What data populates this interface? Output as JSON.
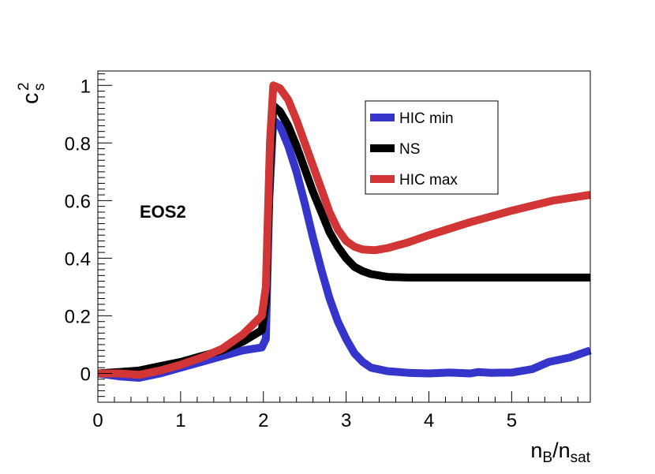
{
  "chart_data": {
    "type": "line",
    "xlabel_main": "n",
    "xlabel_sub1": "B",
    "xlabel_sep": "/n",
    "xlabel_sub2": "sat",
    "ylabel_main": "c",
    "ylabel_sup": "2",
    "ylabel_sub": "s",
    "annotation": "EOS2",
    "xlim": [
      0,
      5.95
    ],
    "ylim": [
      -0.1,
      1.05
    ],
    "x_ticks": [
      0,
      1,
      2,
      3,
      4,
      5
    ],
    "y_ticks": [
      0,
      0.2,
      0.4,
      0.6,
      0.8,
      1
    ],
    "x_tick_labels": [
      "0",
      "1",
      "2",
      "3",
      "4",
      "5"
    ],
    "y_tick_labels": [
      "0",
      "0.2",
      "0.4",
      "0.6",
      "0.8",
      "1"
    ],
    "legend": {
      "position": "top-right-inside"
    },
    "series": [
      {
        "name": "HIC min",
        "color": "#3535cc",
        "points": [
          [
            0,
            0.0
          ],
          [
            0.25,
            -0.01
          ],
          [
            0.5,
            -0.015
          ],
          [
            0.75,
            0.0
          ],
          [
            1.0,
            0.02
          ],
          [
            1.25,
            0.04
          ],
          [
            1.5,
            0.06
          ],
          [
            1.75,
            0.08
          ],
          [
            1.98,
            0.09
          ],
          [
            2.03,
            0.12
          ],
          [
            2.07,
            0.6
          ],
          [
            2.12,
            0.88
          ],
          [
            2.2,
            0.86
          ],
          [
            2.3,
            0.79
          ],
          [
            2.4,
            0.7
          ],
          [
            2.5,
            0.59
          ],
          [
            2.6,
            0.47
          ],
          [
            2.7,
            0.36
          ],
          [
            2.8,
            0.26
          ],
          [
            2.9,
            0.18
          ],
          [
            3.0,
            0.12
          ],
          [
            3.1,
            0.07
          ],
          [
            3.2,
            0.04
          ],
          [
            3.3,
            0.02
          ],
          [
            3.5,
            0.008
          ],
          [
            3.75,
            0.002
          ],
          [
            4.0,
            0.0
          ],
          [
            4.25,
            0.003
          ],
          [
            4.5,
            0.0
          ],
          [
            4.6,
            0.005
          ],
          [
            4.75,
            0.002
          ],
          [
            5.0,
            0.003
          ],
          [
            5.25,
            0.015
          ],
          [
            5.45,
            0.04
          ],
          [
            5.7,
            0.055
          ],
          [
            5.95,
            0.08
          ]
        ]
      },
      {
        "name": "NS",
        "color": "#000000",
        "points": [
          [
            0,
            0.0
          ],
          [
            0.25,
            0.005
          ],
          [
            0.5,
            0.01
          ],
          [
            0.75,
            0.025
          ],
          [
            1.0,
            0.04
          ],
          [
            1.25,
            0.06
          ],
          [
            1.5,
            0.08
          ],
          [
            1.75,
            0.11
          ],
          [
            1.98,
            0.15
          ],
          [
            2.03,
            0.25
          ],
          [
            2.08,
            0.7
          ],
          [
            2.12,
            0.93
          ],
          [
            2.2,
            0.91
          ],
          [
            2.3,
            0.86
          ],
          [
            2.4,
            0.79
          ],
          [
            2.5,
            0.71
          ],
          [
            2.6,
            0.63
          ],
          [
            2.7,
            0.56
          ],
          [
            2.8,
            0.49
          ],
          [
            2.9,
            0.44
          ],
          [
            3.0,
            0.4
          ],
          [
            3.1,
            0.37
          ],
          [
            3.2,
            0.355
          ],
          [
            3.3,
            0.345
          ],
          [
            3.5,
            0.335
          ],
          [
            3.75,
            0.333
          ],
          [
            4.0,
            0.333
          ],
          [
            4.5,
            0.333
          ],
          [
            5.0,
            0.333
          ],
          [
            5.5,
            0.333
          ],
          [
            5.95,
            0.333
          ]
        ]
      },
      {
        "name": "HIC max",
        "color": "#d13535",
        "points": [
          [
            0,
            0.0
          ],
          [
            0.25,
            0.0
          ],
          [
            0.5,
            -0.005
          ],
          [
            0.75,
            0.01
          ],
          [
            1.0,
            0.03
          ],
          [
            1.25,
            0.055
          ],
          [
            1.5,
            0.085
          ],
          [
            1.75,
            0.135
          ],
          [
            1.98,
            0.2
          ],
          [
            2.03,
            0.3
          ],
          [
            2.08,
            0.8
          ],
          [
            2.12,
            1.0
          ],
          [
            2.2,
            0.99
          ],
          [
            2.3,
            0.95
          ],
          [
            2.4,
            0.88
          ],
          [
            2.5,
            0.8
          ],
          [
            2.6,
            0.72
          ],
          [
            2.7,
            0.64
          ],
          [
            2.8,
            0.56
          ],
          [
            2.9,
            0.5
          ],
          [
            3.0,
            0.46
          ],
          [
            3.1,
            0.44
          ],
          [
            3.2,
            0.43
          ],
          [
            3.35,
            0.428
          ],
          [
            3.5,
            0.435
          ],
          [
            3.75,
            0.455
          ],
          [
            4.0,
            0.48
          ],
          [
            4.5,
            0.525
          ],
          [
            5.0,
            0.565
          ],
          [
            5.5,
            0.6
          ],
          [
            5.95,
            0.62
          ]
        ]
      }
    ]
  }
}
